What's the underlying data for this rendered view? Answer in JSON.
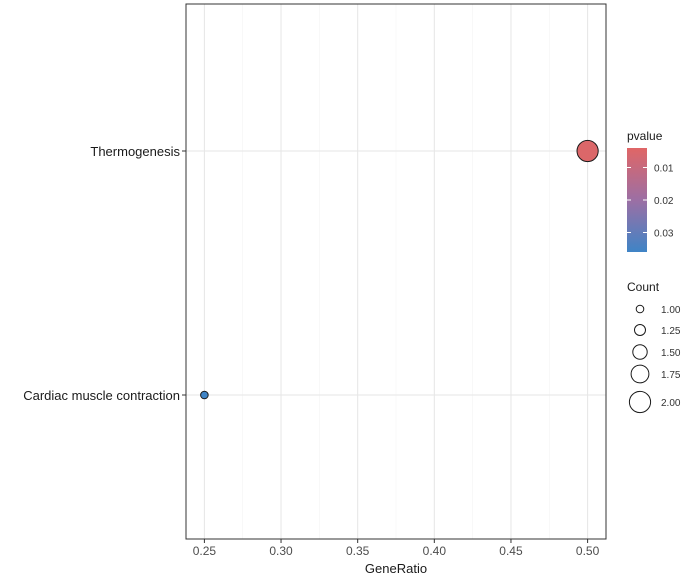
{
  "chart_data": {
    "type": "scatter",
    "title": "",
    "xlabel": "GeneRatio",
    "ylabel": "",
    "xlim": [
      0.238,
      0.512
    ],
    "x_ticks": [
      0.25,
      0.3,
      0.35,
      0.4,
      0.45,
      0.5
    ],
    "x_tick_labels": [
      "0.25",
      "0.30",
      "0.35",
      "0.40",
      "0.45",
      "0.50"
    ],
    "categories": [
      "Thermogenesis",
      "Cardiac muscle contraction"
    ],
    "points": [
      {
        "term": "Thermogenesis",
        "x": 0.5,
        "count": 2,
        "pvalue": 0.005
      },
      {
        "term": "Cardiac muscle contraction",
        "x": 0.25,
        "count": 1,
        "pvalue": 0.036
      }
    ],
    "grid": true,
    "color_legend": {
      "title": "pvalue",
      "low_color": "#e06666",
      "high_color": "#3f84c6",
      "range": [
        0.004,
        0.036
      ],
      "ticks": [
        0.01,
        0.02,
        0.03
      ],
      "tick_labels": [
        "0.01",
        "0.02",
        "0.03"
      ]
    },
    "size_legend": {
      "title": "Count",
      "values": [
        1.0,
        1.25,
        1.5,
        1.75,
        2.0
      ],
      "labels": [
        "1.00",
        "1.25",
        "1.50",
        "1.75",
        "2.00"
      ]
    },
    "legend_position": "right"
  }
}
